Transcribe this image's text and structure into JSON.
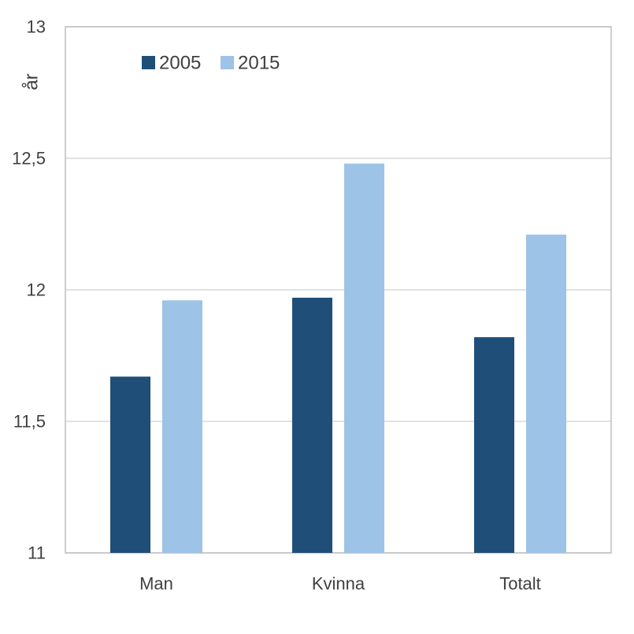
{
  "chart_data": {
    "type": "bar",
    "title": "",
    "xlabel": "",
    "ylabel": "år",
    "categories": [
      "Man",
      "Kvinna",
      "Totalt"
    ],
    "series": [
      {
        "name": "2005",
        "values": [
          11.67,
          11.97,
          11.82
        ],
        "color": "#1f4e79"
      },
      {
        "name": "2015",
        "values": [
          11.96,
          12.48,
          12.21
        ],
        "color": "#9dc3e6"
      }
    ],
    "ylim": [
      11,
      13
    ],
    "yticks": [
      11,
      11.5,
      12,
      12.5,
      13
    ],
    "ytick_labels": [
      "11",
      "11,5",
      "12",
      "12,5",
      "13"
    ],
    "grid": true,
    "legend_position": "top-left"
  }
}
